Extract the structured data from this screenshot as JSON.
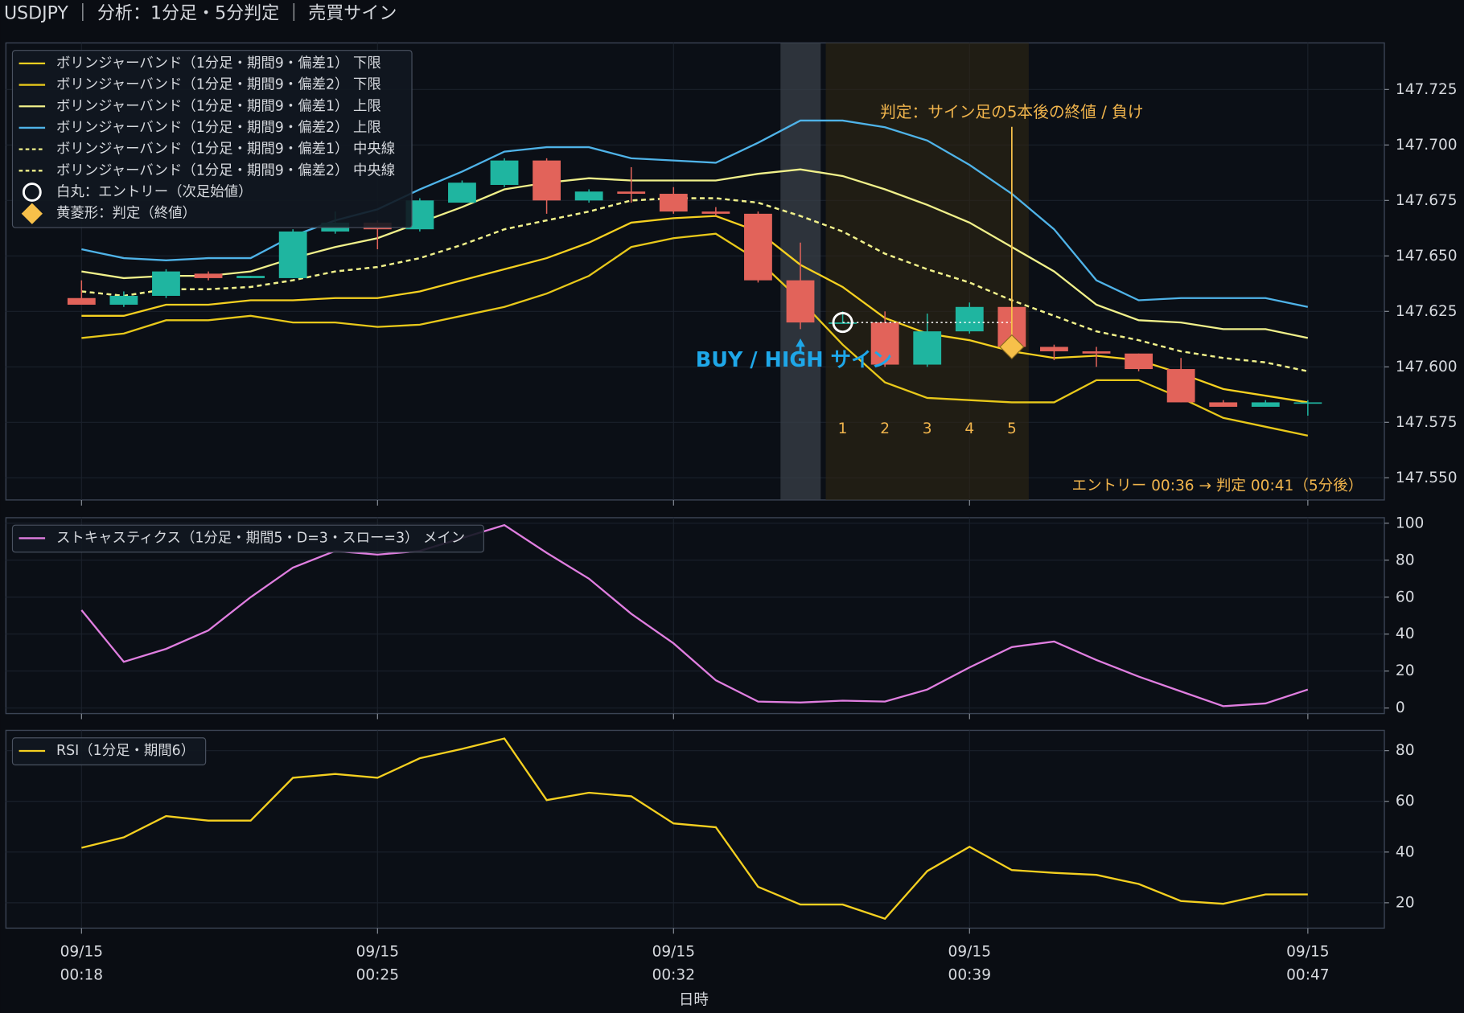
{
  "chart_data": [
    {
      "type": "candlestick",
      "title": "USDJPY ｜ 分析：1分足・5分判定 ｜ 売買サイン",
      "xlabel": "日時",
      "x": [
        "09/15 00:18",
        "09/15 00:19",
        "09/15 00:20",
        "09/15 00:21",
        "09/15 00:22",
        "09/15 00:23",
        "09/15 00:24",
        "09/15 00:25",
        "09/15 00:26",
        "09/15 00:27",
        "09/15 00:28",
        "09/15 00:29",
        "09/15 00:30",
        "09/15 00:31",
        "09/15 00:32",
        "09/15 00:33",
        "09/15 00:34",
        "09/15 00:35",
        "09/15 00:36",
        "09/15 00:37",
        "09/15 00:38",
        "09/15 00:39",
        "09/15 00:40",
        "09/15 00:41",
        "09/15 00:42",
        "09/15 00:43",
        "09/15 00:44",
        "09/15 00:45",
        "09/15 00:46",
        "09/15 00:47"
      ],
      "xticks": [
        "09/15 00:18",
        "09/15 00:25",
        "09/15 00:32",
        "09/15 00:39",
        "09/15 00:47"
      ],
      "open": [
        147.631,
        147.628,
        147.632,
        147.642,
        147.64,
        147.64,
        147.661,
        147.665,
        147.662,
        147.674,
        147.682,
        147.693,
        147.675,
        147.679,
        147.678,
        147.67,
        147.669,
        147.639,
        147.62,
        147.62,
        147.601,
        147.616,
        147.627,
        147.609,
        147.607,
        147.606,
        147.599,
        147.584,
        147.582,
        147.584
      ],
      "high": [
        147.639,
        147.634,
        147.644,
        147.643,
        147.641,
        147.662,
        147.67,
        147.666,
        147.676,
        147.684,
        147.694,
        147.694,
        147.68,
        147.69,
        147.681,
        147.672,
        147.67,
        147.656,
        147.625,
        147.625,
        147.624,
        147.629,
        147.628,
        147.61,
        147.609,
        147.606,
        147.604,
        147.585,
        147.585,
        147.585
      ],
      "low": [
        147.628,
        147.627,
        147.631,
        147.639,
        147.64,
        147.64,
        147.66,
        147.653,
        147.661,
        147.674,
        147.681,
        147.669,
        147.674,
        147.674,
        147.669,
        147.668,
        147.638,
        147.617,
        147.62,
        147.6,
        147.6,
        147.615,
        147.608,
        147.603,
        147.6,
        147.598,
        147.584,
        147.582,
        147.582,
        147.578
      ],
      "close": [
        147.628,
        147.632,
        147.643,
        147.64,
        147.641,
        147.661,
        147.665,
        147.662,
        147.675,
        147.683,
        147.693,
        147.675,
        147.679,
        147.678,
        147.67,
        147.669,
        147.639,
        147.62,
        147.62,
        147.601,
        147.616,
        147.627,
        147.609,
        147.607,
        147.606,
        147.599,
        147.584,
        147.582,
        147.584,
        147.584
      ],
      "up_color": "#1fb5a0",
      "down_color": "#e2635a",
      "ylim": [
        147.54,
        147.746
      ],
      "yticks": [
        {
          "value": 147.55,
          "label": "147.550"
        },
        147.575,
        {
          "value": 147.6,
          "label": "147.600"
        },
        147.625,
        {
          "value": 147.65,
          "label": "147.650"
        },
        147.675,
        {
          "value": 147.7,
          "label": "147.700"
        },
        147.725
      ],
      "grid": true,
      "legend": "upper left",
      "series": [
        {
          "name": "ボリンジャーバンド（1分足・期間9・偏差1） 下限",
          "color": "#f5d020",
          "values": [
            147.623,
            147.623,
            147.628,
            147.628,
            147.63,
            147.63,
            147.631,
            147.631,
            147.634,
            147.639,
            147.644,
            147.649,
            147.656,
            147.665,
            147.667,
            147.668,
            147.661,
            147.646,
            147.636,
            147.622,
            147.615,
            147.612,
            147.607,
            147.604,
            147.605,
            147.603,
            147.597,
            147.59,
            147.587,
            147.584
          ]
        },
        {
          "name": "ボリンジャーバンド（1分足・期間9・偏差2） 下限",
          "color": "#e8c81a",
          "values": [
            147.613,
            147.615,
            147.621,
            147.621,
            147.623,
            147.62,
            147.62,
            147.618,
            147.619,
            147.623,
            147.627,
            147.633,
            147.641,
            147.654,
            147.658,
            147.66,
            147.648,
            147.63,
            147.61,
            147.593,
            147.586,
            147.585,
            147.584,
            147.584,
            147.594,
            147.594,
            147.586,
            147.577,
            147.573,
            147.569
          ]
        },
        {
          "name": "ボリンジャーバンド（1分足・期間9・偏差1） 上限",
          "color": "#f0f08a",
          "values": [
            147.643,
            147.64,
            147.641,
            147.641,
            147.643,
            147.649,
            147.654,
            147.658,
            147.665,
            147.672,
            147.68,
            147.683,
            147.685,
            147.684,
            147.684,
            147.684,
            147.687,
            147.689,
            147.686,
            147.68,
            147.673,
            147.665,
            147.654,
            147.643,
            147.628,
            147.621,
            147.62,
            147.617,
            147.617,
            147.613
          ]
        },
        {
          "name": "ボリンジャーバンド（1分足・期間9・偏差2） 上限",
          "color": "#4fb3e8",
          "values": [
            147.653,
            147.649,
            147.648,
            147.649,
            147.649,
            147.659,
            147.666,
            147.671,
            147.68,
            147.688,
            147.697,
            147.699,
            147.699,
            147.694,
            147.693,
            147.692,
            147.701,
            147.711,
            147.711,
            147.708,
            147.702,
            147.691,
            147.678,
            147.662,
            147.639,
            147.63,
            147.631,
            147.631,
            147.631,
            147.627
          ]
        },
        {
          "name": "ボリンジャーバンド（1分足・期間9・偏差1） 中央線",
          "color": "#f0f08a",
          "dash": true,
          "values": [
            147.634,
            147.632,
            147.635,
            147.635,
            147.636,
            147.639,
            147.643,
            147.645,
            147.649,
            147.655,
            147.662,
            147.666,
            147.67,
            147.675,
            147.676,
            147.676,
            147.674,
            147.668,
            147.661,
            147.651,
            147.644,
            147.638,
            147.63,
            147.623,
            147.616,
            147.612,
            147.607,
            147.604,
            147.602,
            147.598
          ]
        },
        {
          "name": "ボリンジャーバンド（1分足・期間9・偏差2） 中央線",
          "color": "#f0f08a",
          "dash": true,
          "values": [
            147.634,
            147.632,
            147.635,
            147.635,
            147.636,
            147.639,
            147.643,
            147.645,
            147.649,
            147.655,
            147.662,
            147.666,
            147.67,
            147.675,
            147.676,
            147.676,
            147.674,
            147.668,
            147.661,
            147.651,
            147.644,
            147.638,
            147.63,
            147.623,
            147.616,
            147.612,
            147.607,
            147.604,
            147.602,
            147.598
          ]
        }
      ],
      "entry": {
        "name": "白丸：エントリー（次足始値）",
        "x": "09/15 00:36",
        "value": 147.62
      },
      "judgment": {
        "name": "黄菱形：判定（終値）",
        "x": "09/15 00:40",
        "value": 147.609,
        "color": "#f7c04a"
      },
      "signal": {
        "text": "BUY / HIGH サイン",
        "x": "09/15 00:35",
        "color": "#1ea7e8"
      },
      "count_labels": [
        1,
        2,
        3,
        4,
        5
      ],
      "annotation": "判定：サイン足の5本後の終値 / 負け",
      "footnote": "エントリー 00:36 → 判定 00:41（5分後）"
    },
    {
      "type": "line",
      "ylim": [
        -3,
        103
      ],
      "yticks": [
        0,
        20,
        40,
        60,
        80,
        100
      ],
      "grid": true,
      "legend": "upper left",
      "series": [
        {
          "name": "ストキャスティクス（1分足・期間5・D=3・スロー=3） メイン",
          "color": "#e07ee0",
          "values": [
            53,
            25,
            32,
            42,
            60,
            76,
            85,
            83,
            85,
            92,
            99,
            84,
            70,
            51,
            35,
            15,
            3.5,
            3,
            4,
            3.5,
            10,
            22,
            33,
            36,
            26,
            17,
            9,
            1,
            2.5,
            10
          ]
        }
      ]
    },
    {
      "type": "line",
      "ylim": [
        10,
        88
      ],
      "yticks": [
        20,
        40,
        60,
        80
      ],
      "grid": true,
      "legend": "upper left",
      "series": [
        {
          "name": "RSI（1分足・期間6）",
          "color": "#f5d020",
          "values": [
            41.7,
            45.8,
            54.2,
            52.4,
            52.4,
            69.3,
            70.8,
            69.3,
            77,
            80.7,
            84.8,
            60.5,
            63.4,
            62,
            51.3,
            49.8,
            26.3,
            19.3,
            19.3,
            13.7,
            32.5,
            42.1,
            32.9,
            31.8,
            31,
            27.4,
            20.7,
            19.6,
            23.3,
            23.3
          ]
        }
      ]
    }
  ]
}
